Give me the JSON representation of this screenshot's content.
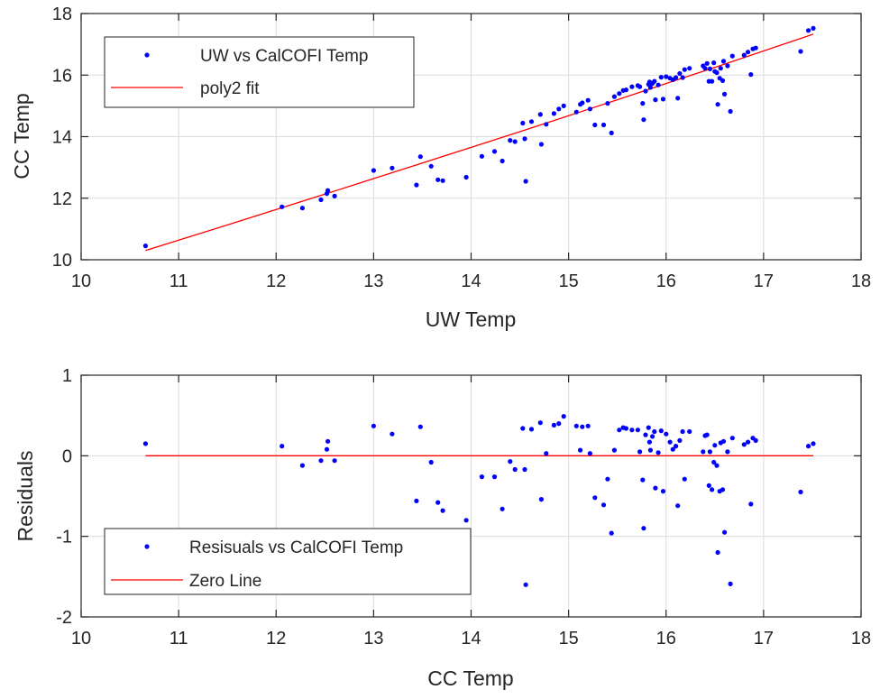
{
  "chart_data": [
    {
      "type": "scatter",
      "xlabel": "UW Temp",
      "ylabel": "CC Temp",
      "xlim": [
        10,
        18
      ],
      "ylim": [
        10,
        18
      ],
      "xticks": [
        10,
        11,
        12,
        13,
        14,
        15,
        16,
        17,
        18
      ],
      "yticks": [
        10,
        12,
        14,
        16,
        18
      ],
      "grid": true,
      "legend": {
        "placement": "top-left",
        "entries": [
          "UW vs CalCOFI Temp",
          "poly2 fit"
        ]
      },
      "series": [
        {
          "name": "UW vs CalCOFI Temp",
          "kind": "points",
          "color": "#0000ff",
          "points": [
            [
              10.66,
              10.45
            ],
            [
              12.06,
              11.72
            ],
            [
              12.27,
              11.68
            ],
            [
              12.46,
              11.95
            ],
            [
              12.52,
              12.15
            ],
            [
              12.53,
              12.25
            ],
            [
              12.6,
              12.07
            ],
            [
              13.0,
              12.9
            ],
            [
              13.19,
              12.98
            ],
            [
              13.44,
              12.43
            ],
            [
              13.48,
              13.35
            ],
            [
              13.59,
              13.04
            ],
            [
              13.66,
              12.6
            ],
            [
              13.71,
              12.57
            ],
            [
              13.95,
              12.68
            ],
            [
              14.11,
              13.36
            ],
            [
              14.24,
              13.52
            ],
            [
              14.32,
              13.21
            ],
            [
              14.4,
              13.88
            ],
            [
              14.45,
              13.84
            ],
            [
              14.55,
              13.93
            ],
            [
              14.53,
              14.44
            ],
            [
              14.56,
              12.55
            ],
            [
              14.62,
              14.49
            ],
            [
              14.71,
              14.72
            ],
            [
              14.72,
              13.75
            ],
            [
              14.77,
              14.4
            ],
            [
              14.85,
              14.75
            ],
            [
              14.9,
              14.9
            ],
            [
              14.95,
              15.0
            ],
            [
              15.08,
              14.8
            ],
            [
              15.12,
              15.05
            ],
            [
              15.14,
              15.1
            ],
            [
              15.2,
              15.18
            ],
            [
              15.22,
              14.9
            ],
            [
              15.27,
              14.38
            ],
            [
              15.36,
              14.38
            ],
            [
              15.4,
              15.08
            ],
            [
              15.44,
              14.12
            ],
            [
              15.47,
              15.3
            ],
            [
              15.52,
              15.4
            ],
            [
              15.56,
              15.5
            ],
            [
              15.59,
              15.52
            ],
            [
              15.65,
              15.62
            ],
            [
              15.71,
              15.66
            ],
            [
              15.73,
              15.62
            ],
            [
              15.76,
              15.08
            ],
            [
              15.77,
              14.55
            ],
            [
              15.79,
              15.48
            ],
            [
              15.82,
              15.7
            ],
            [
              15.83,
              15.78
            ],
            [
              15.84,
              15.6
            ],
            [
              15.86,
              15.73
            ],
            [
              15.88,
              15.8
            ],
            [
              15.89,
              15.2
            ],
            [
              15.92,
              15.68
            ],
            [
              15.95,
              15.93
            ],
            [
              15.97,
              15.22
            ],
            [
              16.0,
              15.95
            ],
            [
              16.04,
              15.9
            ],
            [
              16.07,
              15.85
            ],
            [
              16.1,
              15.92
            ],
            [
              16.12,
              15.25
            ],
            [
              16.14,
              16.05
            ],
            [
              16.17,
              15.92
            ],
            [
              16.19,
              16.18
            ],
            [
              16.24,
              16.22
            ],
            [
              16.38,
              16.3
            ],
            [
              16.4,
              16.22
            ],
            [
              16.42,
              16.38
            ],
            [
              16.44,
              15.8
            ],
            [
              16.45,
              16.2
            ],
            [
              16.47,
              15.8
            ],
            [
              16.49,
              16.4
            ],
            [
              16.5,
              16.12
            ],
            [
              16.52,
              16.08
            ],
            [
              16.53,
              15.05
            ],
            [
              16.55,
              15.9
            ],
            [
              16.56,
              16.22
            ],
            [
              16.58,
              15.82
            ],
            [
              16.59,
              16.45
            ],
            [
              16.6,
              15.38
            ],
            [
              16.63,
              16.3
            ],
            [
              16.66,
              14.82
            ],
            [
              16.68,
              16.62
            ],
            [
              16.8,
              16.65
            ],
            [
              16.84,
              16.75
            ],
            [
              16.87,
              16.02
            ],
            [
              16.89,
              16.85
            ],
            [
              16.92,
              16.88
            ],
            [
              17.38,
              16.77
            ],
            [
              17.46,
              17.45
            ],
            [
              17.51,
              17.52
            ]
          ]
        },
        {
          "name": "poly2 fit",
          "kind": "line",
          "color": "#ff0000",
          "points": [
            [
              10.66,
              10.3
            ],
            [
              11.5,
              11.13
            ],
            [
              12.5,
              12.13
            ],
            [
              13.5,
              13.14
            ],
            [
              14.5,
              14.16
            ],
            [
              15.5,
              15.2
            ],
            [
              16.5,
              16.25
            ],
            [
              17.51,
              17.33
            ]
          ]
        }
      ]
    },
    {
      "type": "scatter",
      "xlabel": "CC Temp",
      "ylabel": "Residuals",
      "xlim": [
        10,
        18
      ],
      "ylim": [
        -2,
        1
      ],
      "xticks": [
        10,
        11,
        12,
        13,
        14,
        15,
        16,
        17,
        18
      ],
      "yticks": [
        -2,
        -1,
        0,
        1
      ],
      "grid": true,
      "legend": {
        "placement": "bottom-left",
        "entries": [
          "Resisuals vs CalCOFI Temp",
          "Zero Line"
        ]
      },
      "series": [
        {
          "name": "Resisuals vs CalCOFI Temp",
          "kind": "points",
          "color": "#0000ff",
          "points": [
            [
              10.66,
              0.15
            ],
            [
              12.06,
              0.12
            ],
            [
              12.27,
              -0.12
            ],
            [
              12.46,
              -0.06
            ],
            [
              12.52,
              0.08
            ],
            [
              12.53,
              0.18
            ],
            [
              12.6,
              -0.06
            ],
            [
              13.0,
              0.37
            ],
            [
              13.19,
              0.27
            ],
            [
              13.44,
              -0.56
            ],
            [
              13.48,
              0.36
            ],
            [
              13.59,
              -0.08
            ],
            [
              13.66,
              -0.58
            ],
            [
              13.71,
              -0.68
            ],
            [
              13.95,
              -0.8
            ],
            [
              14.11,
              -0.26
            ],
            [
              14.24,
              -0.26
            ],
            [
              14.32,
              -0.66
            ],
            [
              14.4,
              -0.07
            ],
            [
              14.45,
              -0.17
            ],
            [
              14.53,
              0.34
            ],
            [
              14.55,
              -0.17
            ],
            [
              14.56,
              -1.6
            ],
            [
              14.62,
              0.33
            ],
            [
              14.71,
              0.41
            ],
            [
              14.72,
              -0.54
            ],
            [
              14.77,
              0.03
            ],
            [
              14.85,
              0.38
            ],
            [
              14.9,
              0.4
            ],
            [
              14.95,
              0.49
            ],
            [
              15.08,
              0.37
            ],
            [
              15.12,
              0.07
            ],
            [
              15.14,
              0.36
            ],
            [
              15.2,
              0.37
            ],
            [
              15.22,
              0.03
            ],
            [
              15.27,
              -0.52
            ],
            [
              15.36,
              -0.61
            ],
            [
              15.4,
              -0.29
            ],
            [
              15.44,
              -0.96
            ],
            [
              15.47,
              0.07
            ],
            [
              15.52,
              0.32
            ],
            [
              15.56,
              0.35
            ],
            [
              15.59,
              0.34
            ],
            [
              15.65,
              0.32
            ],
            [
              15.71,
              0.32
            ],
            [
              15.73,
              0.05
            ],
            [
              15.76,
              -0.3
            ],
            [
              15.77,
              -0.9
            ],
            [
              15.79,
              0.26
            ],
            [
              15.82,
              0.35
            ],
            [
              15.83,
              0.17
            ],
            [
              15.84,
              0.07
            ],
            [
              15.86,
              0.24
            ],
            [
              15.88,
              0.3
            ],
            [
              15.89,
              -0.4
            ],
            [
              15.92,
              0.04
            ],
            [
              15.95,
              0.31
            ],
            [
              15.97,
              -0.44
            ],
            [
              16.0,
              0.27
            ],
            [
              16.04,
              0.17
            ],
            [
              16.07,
              0.08
            ],
            [
              16.1,
              0.12
            ],
            [
              16.12,
              -0.62
            ],
            [
              16.14,
              0.19
            ],
            [
              16.17,
              0.3
            ],
            [
              16.19,
              -0.29
            ],
            [
              16.24,
              0.3
            ],
            [
              16.38,
              0.05
            ],
            [
              16.4,
              0.25
            ],
            [
              16.42,
              0.26
            ],
            [
              16.44,
              -0.37
            ],
            [
              16.45,
              0.05
            ],
            [
              16.47,
              -0.42
            ],
            [
              16.49,
              -0.08
            ],
            [
              16.5,
              0.13
            ],
            [
              16.52,
              -0.12
            ],
            [
              16.53,
              -1.2
            ],
            [
              16.55,
              -0.44
            ],
            [
              16.56,
              0.16
            ],
            [
              16.58,
              -0.42
            ],
            [
              16.59,
              0.18
            ],
            [
              16.6,
              -0.95
            ],
            [
              16.63,
              0.05
            ],
            [
              16.66,
              -1.59
            ],
            [
              16.68,
              0.22
            ],
            [
              16.8,
              0.14
            ],
            [
              16.84,
              0.17
            ],
            [
              16.87,
              -0.6
            ],
            [
              16.89,
              0.22
            ],
            [
              16.92,
              0.19
            ],
            [
              17.38,
              -0.45
            ],
            [
              17.46,
              0.12
            ],
            [
              17.51,
              0.15
            ]
          ]
        },
        {
          "name": "Zero Line",
          "kind": "line",
          "color": "#ff0000",
          "points": [
            [
              10.66,
              0
            ],
            [
              17.51,
              0
            ]
          ]
        }
      ]
    }
  ]
}
